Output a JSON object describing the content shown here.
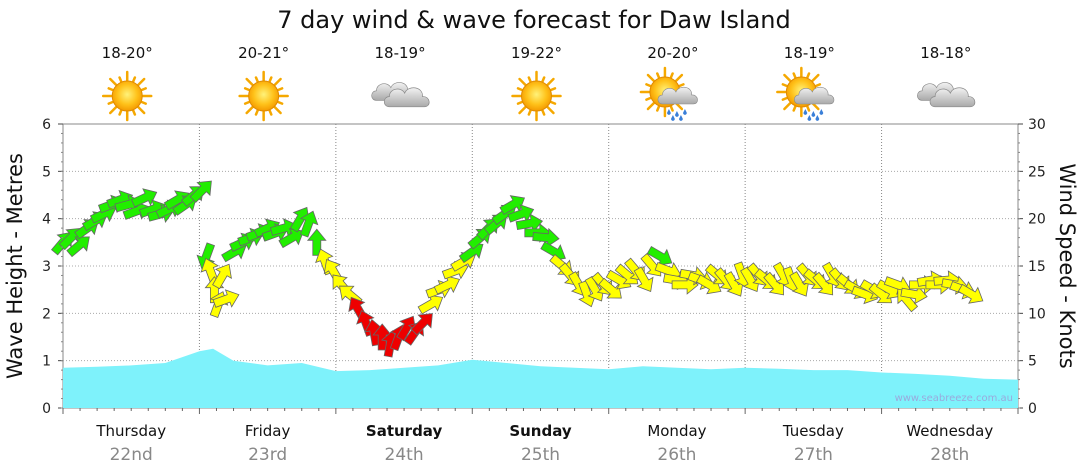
{
  "chart_data": {
    "type": "line",
    "title": "7 day wind & wave forecast for Daw Island",
    "y_left_label": "Wave Height - Metres",
    "y_right_label": "Wind Speed - Knots",
    "y_left_range": [
      0,
      6
    ],
    "y_left_ticks": [
      "0",
      "1",
      "2",
      "3",
      "4",
      "5",
      "6"
    ],
    "y_right_range": [
      0,
      30
    ],
    "y_right_ticks": [
      "0",
      "5",
      "10",
      "15",
      "20",
      "25",
      "30"
    ],
    "grid": true,
    "watermark": "www.seabreeze.com.au",
    "days": [
      {
        "day": "Thursday",
        "date": "22nd",
        "bold": false,
        "temp": "18-20°",
        "weather": "sunny-icon"
      },
      {
        "day": "Friday",
        "date": "23rd",
        "bold": false,
        "temp": "20-21°",
        "weather": "sunny-icon"
      },
      {
        "day": "Saturday",
        "date": "24th",
        "bold": true,
        "temp": "18-19°",
        "weather": "cloudy-icon"
      },
      {
        "day": "Sunday",
        "date": "25th",
        "bold": true,
        "temp": "19-22°",
        "weather": "sunny-icon"
      },
      {
        "day": "Monday",
        "date": "26th",
        "bold": false,
        "temp": "20-20°",
        "weather": "sun-rain-icon"
      },
      {
        "day": "Tuesday",
        "date": "27th",
        "bold": false,
        "temp": "18-19°",
        "weather": "sun-rain-icon"
      },
      {
        "day": "Wednesday",
        "date": "28th",
        "bold": false,
        "temp": "18-18°",
        "weather": "cloudy-icon"
      }
    ],
    "wave_series": {
      "name": "Wave Height",
      "x_days": [
        0,
        0.25,
        0.5,
        0.75,
        1.0,
        1.1,
        1.25,
        1.5,
        1.75,
        2.0,
        2.25,
        2.5,
        2.75,
        3.0,
        3.25,
        3.5,
        3.75,
        4.0,
        4.25,
        4.5,
        4.75,
        5.0,
        5.25,
        5.5,
        5.75,
        6.0,
        6.25,
        6.5,
        6.75,
        7.0
      ],
      "values": [
        0.85,
        0.87,
        0.9,
        0.95,
        1.2,
        1.25,
        1.0,
        0.9,
        0.95,
        0.78,
        0.8,
        0.85,
        0.9,
        1.02,
        0.95,
        0.88,
        0.85,
        0.82,
        0.88,
        0.85,
        0.82,
        0.85,
        0.83,
        0.8,
        0.8,
        0.75,
        0.72,
        0.68,
        0.62,
        0.6
      ],
      "color": "#7ef2fb"
    },
    "wind_series": {
      "name": "Wind Speed",
      "points": [
        {
          "x": 0.0,
          "kt": 17.5,
          "dir": 220
        },
        {
          "x": 0.06,
          "kt": 18.0,
          "dir": 225
        },
        {
          "x": 0.12,
          "kt": 17.2,
          "dir": 230
        },
        {
          "x": 0.18,
          "kt": 19.0,
          "dir": 235
        },
        {
          "x": 0.24,
          "kt": 19.8,
          "dir": 240
        },
        {
          "x": 0.3,
          "kt": 20.5,
          "dir": 245
        },
        {
          "x": 0.36,
          "kt": 21.5,
          "dir": 250
        },
        {
          "x": 0.42,
          "kt": 22.0,
          "dir": 250
        },
        {
          "x": 0.48,
          "kt": 21.5,
          "dir": 255
        },
        {
          "x": 0.54,
          "kt": 20.8,
          "dir": 250
        },
        {
          "x": 0.6,
          "kt": 22.2,
          "dir": 245
        },
        {
          "x": 0.66,
          "kt": 21.0,
          "dir": 250
        },
        {
          "x": 0.72,
          "kt": 20.5,
          "dir": 255
        },
        {
          "x": 0.78,
          "kt": 21.0,
          "dir": 245
        },
        {
          "x": 0.84,
          "kt": 22.0,
          "dir": 240
        },
        {
          "x": 0.9,
          "kt": 21.5,
          "dir": 235
        },
        {
          "x": 0.96,
          "kt": 22.5,
          "dir": 230
        },
        {
          "x": 1.02,
          "kt": 23.0,
          "dir": 225
        },
        {
          "x": 1.05,
          "kt": 16.0,
          "dir": 20
        },
        {
          "x": 1.08,
          "kt": 14.5,
          "dir": 160
        },
        {
          "x": 1.11,
          "kt": 12.5,
          "dir": 180
        },
        {
          "x": 1.14,
          "kt": 11.0,
          "dir": 200
        },
        {
          "x": 1.17,
          "kt": 14.0,
          "dir": 210
        },
        {
          "x": 1.2,
          "kt": 11.5,
          "dir": 250
        },
        {
          "x": 1.26,
          "kt": 16.5,
          "dir": 240
        },
        {
          "x": 1.32,
          "kt": 17.5,
          "dir": 245
        },
        {
          "x": 1.38,
          "kt": 18.0,
          "dir": 250
        },
        {
          "x": 1.44,
          "kt": 18.5,
          "dir": 250
        },
        {
          "x": 1.5,
          "kt": 19.0,
          "dir": 245
        },
        {
          "x": 1.56,
          "kt": 18.5,
          "dir": 250
        },
        {
          "x": 1.62,
          "kt": 19.0,
          "dir": 255
        },
        {
          "x": 1.68,
          "kt": 18.0,
          "dir": 240
        },
        {
          "x": 1.74,
          "kt": 20.0,
          "dir": 210
        },
        {
          "x": 1.8,
          "kt": 19.5,
          "dir": 200
        },
        {
          "x": 1.86,
          "kt": 17.5,
          "dir": 180
        },
        {
          "x": 1.92,
          "kt": 15.5,
          "dir": 160
        },
        {
          "x": 1.98,
          "kt": 14.5,
          "dir": 150
        },
        {
          "x": 2.04,
          "kt": 13.0,
          "dir": 140
        },
        {
          "x": 2.1,
          "kt": 12.0,
          "dir": 130
        },
        {
          "x": 2.16,
          "kt": 10.5,
          "dir": 150
        },
        {
          "x": 2.22,
          "kt": 9.0,
          "dir": 160
        },
        {
          "x": 2.28,
          "kt": 8.0,
          "dir": 170
        },
        {
          "x": 2.34,
          "kt": 7.5,
          "dir": 180
        },
        {
          "x": 2.4,
          "kt": 6.8,
          "dir": 190
        },
        {
          "x": 2.46,
          "kt": 7.5,
          "dir": 200
        },
        {
          "x": 2.52,
          "kt": 8.5,
          "dir": 210
        },
        {
          "x": 2.58,
          "kt": 8.0,
          "dir": 215
        },
        {
          "x": 2.64,
          "kt": 9.0,
          "dir": 225
        },
        {
          "x": 2.7,
          "kt": 11.0,
          "dir": 240
        },
        {
          "x": 2.76,
          "kt": 12.5,
          "dir": 250
        },
        {
          "x": 2.82,
          "kt": 13.0,
          "dir": 245
        },
        {
          "x": 2.88,
          "kt": 14.5,
          "dir": 250
        },
        {
          "x": 2.94,
          "kt": 15.5,
          "dir": 240
        },
        {
          "x": 3.0,
          "kt": 16.5,
          "dir": 235
        },
        {
          "x": 3.06,
          "kt": 18.0,
          "dir": 230
        },
        {
          "x": 3.12,
          "kt": 19.0,
          "dir": 225
        },
        {
          "x": 3.18,
          "kt": 19.5,
          "dir": 230
        },
        {
          "x": 3.24,
          "kt": 20.5,
          "dir": 235
        },
        {
          "x": 3.3,
          "kt": 21.5,
          "dir": 240
        },
        {
          "x": 3.36,
          "kt": 20.5,
          "dir": 250
        },
        {
          "x": 3.42,
          "kt": 19.5,
          "dir": 260
        },
        {
          "x": 3.48,
          "kt": 18.5,
          "dir": 270
        },
        {
          "x": 3.54,
          "kt": 18.0,
          "dir": 275
        },
        {
          "x": 3.6,
          "kt": 16.5,
          "dir": 300
        },
        {
          "x": 3.66,
          "kt": 15.0,
          "dir": 310
        },
        {
          "x": 3.72,
          "kt": 14.0,
          "dir": 320
        },
        {
          "x": 3.78,
          "kt": 13.0,
          "dir": 330
        },
        {
          "x": 3.84,
          "kt": 12.0,
          "dir": 340
        },
        {
          "x": 3.9,
          "kt": 12.5,
          "dir": 330
        },
        {
          "x": 3.96,
          "kt": 13.0,
          "dir": 320
        },
        {
          "x": 4.02,
          "kt": 12.5,
          "dir": 310
        },
        {
          "x": 4.08,
          "kt": 13.5,
          "dir": 300
        },
        {
          "x": 4.14,
          "kt": 14.0,
          "dir": 310
        },
        {
          "x": 4.2,
          "kt": 14.5,
          "dir": 320
        },
        {
          "x": 4.26,
          "kt": 13.5,
          "dir": 330
        },
        {
          "x": 4.32,
          "kt": 15.0,
          "dir": 320
        },
        {
          "x": 4.38,
          "kt": 16.0,
          "dir": 300
        },
        {
          "x": 4.44,
          "kt": 14.5,
          "dir": 290
        },
        {
          "x": 4.5,
          "kt": 13.5,
          "dir": 280
        },
        {
          "x": 4.56,
          "kt": 13.0,
          "dir": 270
        },
        {
          "x": 4.62,
          "kt": 14.0,
          "dir": 280
        },
        {
          "x": 4.68,
          "kt": 13.5,
          "dir": 290
        },
        {
          "x": 4.74,
          "kt": 13.0,
          "dir": 300
        },
        {
          "x": 4.8,
          "kt": 14.0,
          "dir": 310
        },
        {
          "x": 4.86,
          "kt": 13.5,
          "dir": 320
        },
        {
          "x": 4.92,
          "kt": 13.0,
          "dir": 330
        },
        {
          "x": 4.98,
          "kt": 14.0,
          "dir": 340
        },
        {
          "x": 5.04,
          "kt": 13.5,
          "dir": 330
        },
        {
          "x": 5.1,
          "kt": 14.0,
          "dir": 320
        },
        {
          "x": 5.16,
          "kt": 13.5,
          "dir": 310
        },
        {
          "x": 5.22,
          "kt": 13.0,
          "dir": 320
        },
        {
          "x": 5.28,
          "kt": 14.0,
          "dir": 330
        },
        {
          "x": 5.34,
          "kt": 13.5,
          "dir": 340
        },
        {
          "x": 5.4,
          "kt": 13.0,
          "dir": 330
        },
        {
          "x": 5.46,
          "kt": 14.0,
          "dir": 320
        },
        {
          "x": 5.52,
          "kt": 13.5,
          "dir": 310
        },
        {
          "x": 5.58,
          "kt": 13.0,
          "dir": 320
        },
        {
          "x": 5.64,
          "kt": 14.0,
          "dir": 330
        },
        {
          "x": 5.7,
          "kt": 13.5,
          "dir": 320
        },
        {
          "x": 5.76,
          "kt": 13.0,
          "dir": 310
        },
        {
          "x": 5.82,
          "kt": 12.5,
          "dir": 300
        },
        {
          "x": 5.88,
          "kt": 12.0,
          "dir": 290
        },
        {
          "x": 5.94,
          "kt": 12.5,
          "dir": 300
        },
        {
          "x": 6.0,
          "kt": 12.0,
          "dir": 310
        },
        {
          "x": 6.06,
          "kt": 12.5,
          "dir": 300
        },
        {
          "x": 6.12,
          "kt": 13.0,
          "dir": 290
        },
        {
          "x": 6.18,
          "kt": 11.5,
          "dir": 140
        },
        {
          "x": 6.24,
          "kt": 12.0,
          "dir": 280
        },
        {
          "x": 6.3,
          "kt": 13.0,
          "dir": 270
        },
        {
          "x": 6.36,
          "kt": 13.5,
          "dir": 260
        },
        {
          "x": 6.42,
          "kt": 13.0,
          "dir": 270
        },
        {
          "x": 6.48,
          "kt": 13.5,
          "dir": 265
        },
        {
          "x": 6.54,
          "kt": 13.0,
          "dir": 280
        },
        {
          "x": 6.6,
          "kt": 12.5,
          "dir": 290
        },
        {
          "x": 6.66,
          "kt": 12.0,
          "dir": 300
        }
      ]
    }
  }
}
